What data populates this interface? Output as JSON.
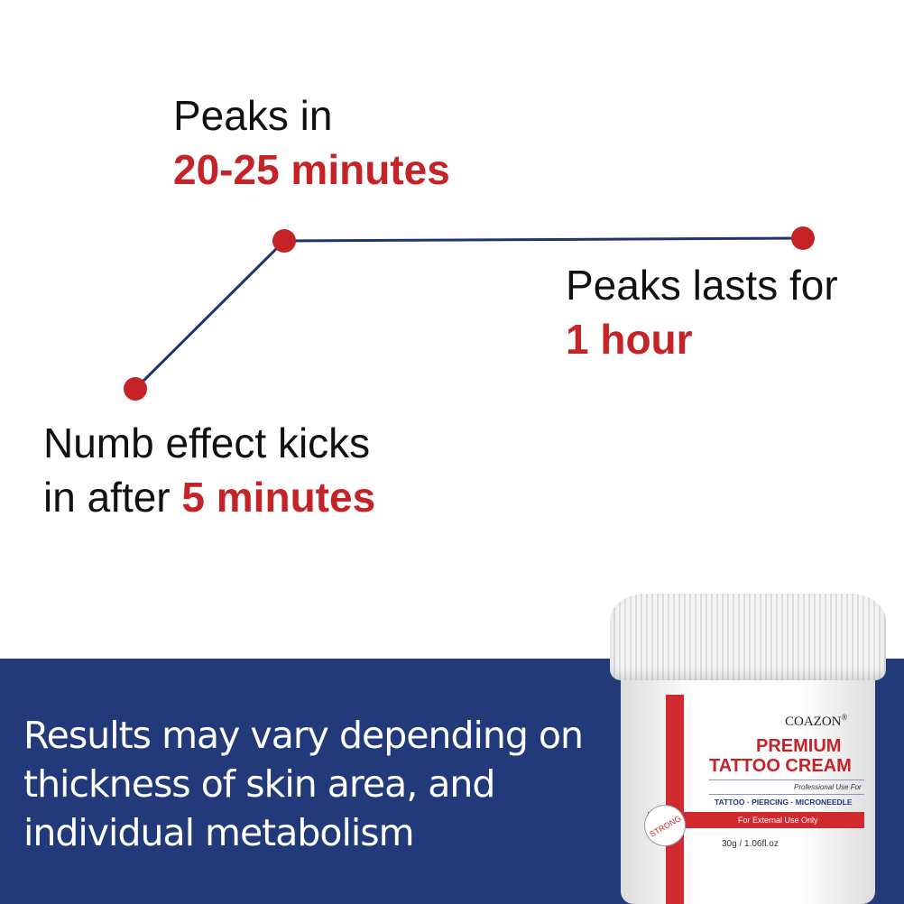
{
  "stage1": {
    "line1": "Numb effect kicks",
    "prefix": "in after ",
    "highlight": "5 minutes"
  },
  "stage2": {
    "line1": "Peaks in",
    "highlight": "20-25 minutes"
  },
  "stage3": {
    "line1": "Peaks lasts for",
    "highlight": "1 hour"
  },
  "note": "Results may vary depending on thickness of skin area, and individual metabolism",
  "product": {
    "brand": "COAZON",
    "reg": "®",
    "title1": "PREMIUM",
    "title2": "TATTOO CREAM",
    "sub": "Professional Use For",
    "uses": "TATTOO · PIERCING · MICRONEEDLE",
    "warning": "For External Use Only",
    "badge": "STRONG",
    "size": "30g / 1.06fl.oz"
  },
  "colors": {
    "accent": "#c62328",
    "navy": "#233a7a",
    "line": "#1f3470"
  }
}
